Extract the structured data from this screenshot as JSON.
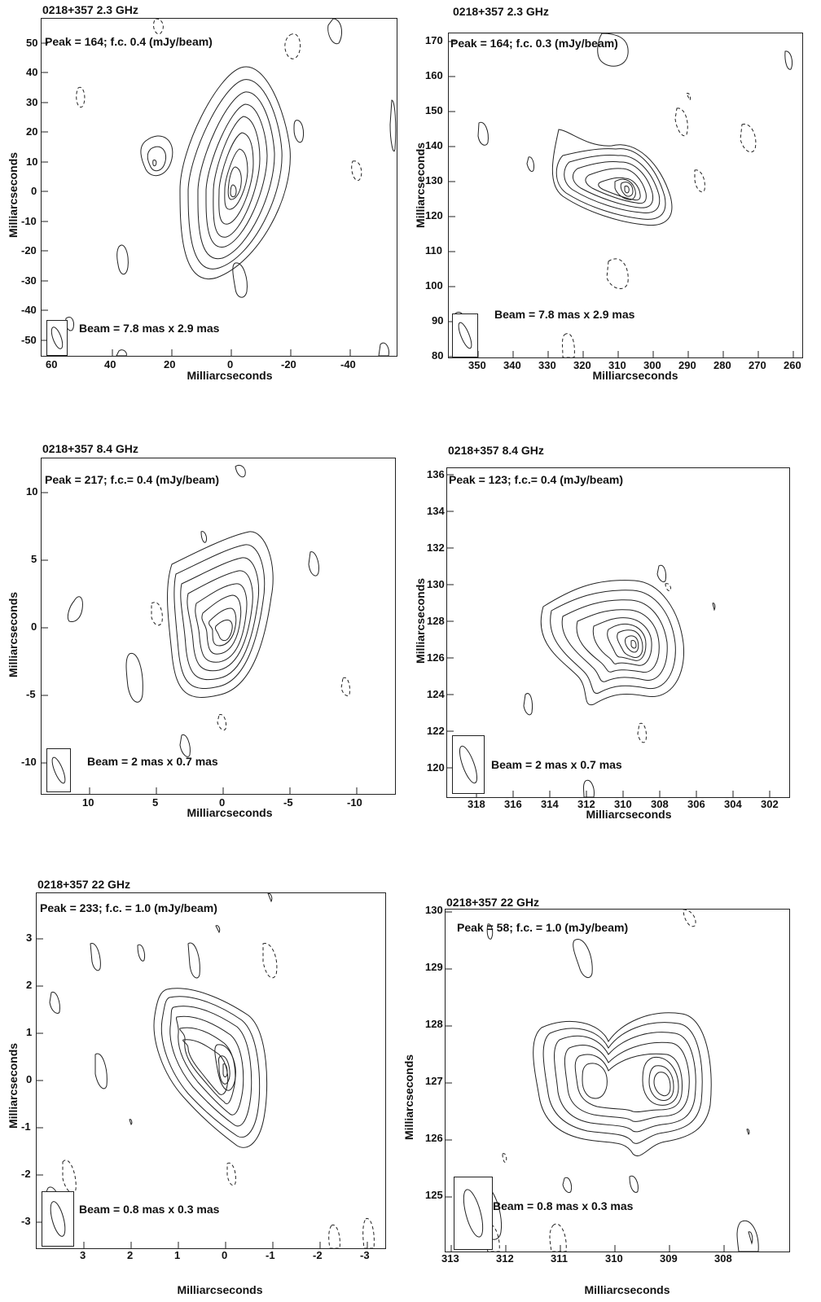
{
  "panels": [
    {
      "title": "0218+357  2.3 GHz",
      "peak_text": "Peak = 164; f.c. 0.4 (mJy/beam)",
      "beam_text": "Beam = 7.8 mas x 2.9 mas",
      "xlabel": "Milliarcseconds",
      "ylabel": "Milliarcseconds",
      "x_ticks": [
        "60",
        "40",
        "20",
        "0",
        "-20",
        "-40"
      ],
      "y_ticks": [
        "50",
        "40",
        "30",
        "20",
        "10",
        "0",
        "-10",
        "-20",
        "-30",
        "-40",
        "-50"
      ]
    },
    {
      "title": "0218+357  2.3 GHz",
      "peak_text": "Peak = 164; f.c. 0.3 (mJy/beam)",
      "beam_text": "Beam = 7.8 mas x 2.9 mas",
      "xlabel": "Milliarcseconds",
      "ylabel": "Milliarcseconds",
      "x_ticks": [
        "350",
        "340",
        "330",
        "320",
        "310",
        "300",
        "290",
        "280",
        "270",
        "260"
      ],
      "y_ticks": [
        "170",
        "160",
        "150",
        "140",
        "130",
        "120",
        "110",
        "100",
        "90",
        "80"
      ]
    },
    {
      "title": "0218+357  8.4 GHz",
      "peak_text": "Peak = 217; f.c.= 0.4 (mJy/beam)",
      "beam_text": "Beam = 2 mas x 0.7 mas",
      "xlabel": "Milliarcseconds",
      "ylabel": "Milliarcseconds",
      "x_ticks": [
        "10",
        "5",
        "0",
        "-5",
        "-10"
      ],
      "y_ticks": [
        "10",
        "5",
        "0",
        "-5",
        "-10"
      ]
    },
    {
      "title": "0218+357  8.4 GHz",
      "peak_text": "Peak = 123; f.c.= 0.4 (mJy/beam)",
      "beam_text": "Beam = 2 mas x 0.7 mas",
      "xlabel": "Milliarcseconds",
      "ylabel": "Milliarcseconds",
      "x_ticks": [
        "318",
        "316",
        "314",
        "312",
        "310",
        "308",
        "306",
        "304",
        "302"
      ],
      "y_ticks": [
        "136",
        "134",
        "132",
        "130",
        "128",
        "126",
        "124",
        "122",
        "120"
      ]
    },
    {
      "title": "0218+357  22 GHz",
      "peak_text": "Peak = 233; f.c. = 1.0 (mJy/beam)",
      "beam_text": "Beam = 0.8 mas x 0.3 mas",
      "xlabel": "Milliarcseconds",
      "ylabel": "Milliarcseconds",
      "x_ticks": [
        "3",
        "2",
        "1",
        "0",
        "-1",
        "-2",
        "-3"
      ],
      "y_ticks": [
        "3",
        "2",
        "1",
        "0",
        "-1",
        "-2",
        "-3"
      ]
    },
    {
      "title": "0218+357  22 GHz",
      "peak_text": "Peak = 58; f.c. = 1.0 (mJy/beam)",
      "beam_text": "Beam = 0.8 mas x 0.3 mas",
      "xlabel": "Milliarcseconds",
      "ylabel": "Milliarcseconds",
      "x_ticks": [
        "313",
        "312",
        "311",
        "310",
        "309",
        "308"
      ],
      "y_ticks": [
        "130",
        "129",
        "128",
        "127",
        "126",
        "125"
      ]
    }
  ]
}
